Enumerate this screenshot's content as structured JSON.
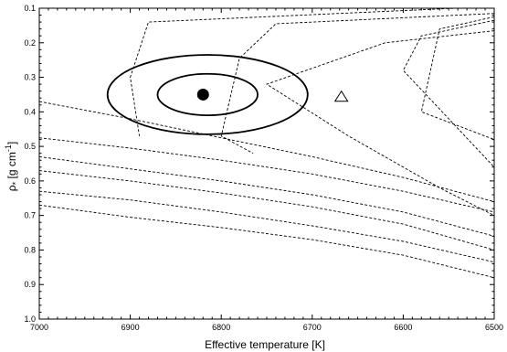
{
  "chart_data": {
    "type": "line",
    "xlabel": "Effective temperature [K]",
    "ylabel_main": "ρ",
    "ylabel_sub": "*",
    "ylabel_rest": " [g cm",
    "ylabel_sup": "-1",
    "ylabel_close": "]",
    "xlim": [
      7000,
      6500
    ],
    "ylim": [
      1.0,
      0.1
    ],
    "y_inverted": true,
    "x_inverted": true,
    "xticks": [
      {
        "value": 7000,
        "label": "7000"
      },
      {
        "value": 6900,
        "label": "6900"
      },
      {
        "value": 6800,
        "label": "6800"
      },
      {
        "value": 6700,
        "label": "6700"
      },
      {
        "value": 6600,
        "label": "6600"
      },
      {
        "value": 6500,
        "label": "6500"
      }
    ],
    "yticks": [
      {
        "value": 0.1,
        "label": "0.1"
      },
      {
        "value": 0.2,
        "label": "0.2"
      },
      {
        "value": 0.3,
        "label": "0.3"
      },
      {
        "value": 0.4,
        "label": "0.4"
      },
      {
        "value": 0.5,
        "label": "0.5"
      },
      {
        "value": 0.6,
        "label": "0.6"
      },
      {
        "value": 0.7,
        "label": "0.7"
      },
      {
        "value": 0.8,
        "label": "0.8"
      },
      {
        "value": 0.9,
        "label": "0.9"
      },
      {
        "value": 1.0,
        "label": "1.0"
      }
    ],
    "grid": false,
    "line_style": "dashed",
    "colors": {
      "lines": "#000000",
      "marker": "#000000"
    },
    "isochrones": [
      {
        "points": [
          [
            7000,
            0.37
          ],
          [
            6900,
            0.42
          ],
          [
            6800,
            0.475
          ],
          [
            6700,
            0.53
          ],
          [
            6600,
            0.59
          ],
          [
            6500,
            0.66
          ]
        ]
      },
      {
        "points": [
          [
            7000,
            0.475
          ],
          [
            6900,
            0.505
          ],
          [
            6800,
            0.54
          ],
          [
            6700,
            0.58
          ],
          [
            6600,
            0.63
          ],
          [
            6500,
            0.69
          ]
        ]
      },
      {
        "points": [
          [
            7000,
            0.53
          ],
          [
            6900,
            0.565
          ],
          [
            6800,
            0.6
          ],
          [
            6700,
            0.64
          ],
          [
            6600,
            0.69
          ],
          [
            6500,
            0.76
          ]
        ]
      },
      {
        "points": [
          [
            7000,
            0.57
          ],
          [
            6900,
            0.6
          ],
          [
            6800,
            0.635
          ],
          [
            6700,
            0.675
          ],
          [
            6600,
            0.725
          ],
          [
            6500,
            0.8
          ]
        ]
      },
      {
        "points": [
          [
            7000,
            0.63
          ],
          [
            6900,
            0.655
          ],
          [
            6800,
            0.69
          ],
          [
            6700,
            0.73
          ],
          [
            6600,
            0.775
          ],
          [
            6500,
            0.835
          ]
        ]
      },
      {
        "points": [
          [
            7000,
            0.67
          ],
          [
            6900,
            0.705
          ],
          [
            6800,
            0.735
          ],
          [
            6700,
            0.77
          ],
          [
            6600,
            0.815
          ],
          [
            6500,
            0.88
          ]
        ]
      }
    ],
    "tracks": [
      {
        "points": [
          [
            6500,
            0.165
          ],
          [
            6620,
            0.2
          ],
          [
            6750,
            0.32
          ],
          [
            6660,
            0.47
          ],
          [
            6560,
            0.62
          ],
          [
            6500,
            0.7
          ]
        ]
      },
      {
        "points": [
          [
            6500,
            0.115
          ],
          [
            6740,
            0.145
          ],
          [
            6780,
            0.245
          ],
          [
            6800,
            0.47
          ],
          [
            6765,
            0.52
          ]
        ]
      },
      {
        "points": [
          [
            6500,
            0.135
          ],
          [
            6580,
            0.18
          ],
          [
            6600,
            0.28
          ],
          [
            6500,
            0.56
          ]
        ]
      },
      {
        "points": [
          [
            6500,
            0.125
          ],
          [
            6560,
            0.16
          ],
          [
            6580,
            0.4
          ],
          [
            6500,
            0.48
          ]
        ]
      },
      {
        "points": [
          [
            6500,
            0.095
          ],
          [
            6880,
            0.14
          ],
          [
            6900,
            0.3
          ],
          [
            6890,
            0.47
          ]
        ]
      }
    ],
    "best_fit": {
      "x": 6820,
      "y": 0.35
    },
    "ellipses": [
      {
        "cx": 6815,
        "cy": 0.35,
        "rx": 55,
        "ry": 0.06
      },
      {
        "cx": 6815,
        "cy": 0.35,
        "rx": 110,
        "ry": 0.115
      }
    ],
    "triangle": {
      "x": 6668,
      "y": 0.356
    }
  }
}
